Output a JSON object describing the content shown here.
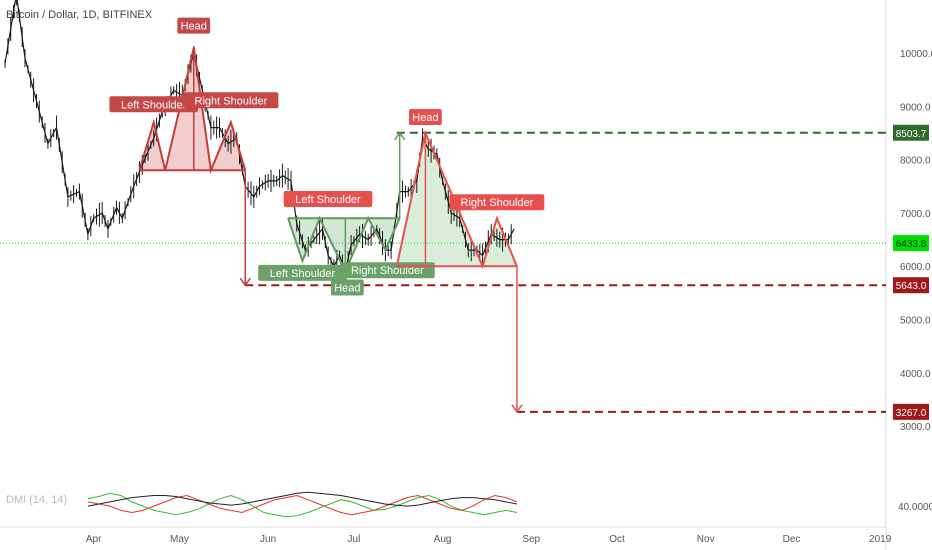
{
  "header": {
    "symbol_title": "Bitcoin / Dollar, 1D, BITFINEX"
  },
  "chart_data": {
    "type": "line",
    "title": "Bitcoin / Dollar, 1D, BITFINEX",
    "xlabel": "",
    "ylabel": "",
    "x_axis_labels": [
      "Apr",
      "May",
      "Jun",
      "Jul",
      "Aug",
      "Sep",
      "Oct",
      "Nov",
      "Dec",
      "2019"
    ],
    "y_ticks": [
      3000,
      4000,
      5000,
      6000,
      7000,
      8000,
      9000,
      10000
    ],
    "y_tick_labels": [
      "3000.0",
      "4000.0",
      "5000.0",
      "6000.0",
      "7000.0",
      "8000.0",
      "9000.0",
      "10000.0"
    ],
    "ylim": [
      2700,
      10700
    ],
    "grid": false,
    "price_series": {
      "name": "BTCUSD",
      "points": [
        [
          "Mar 01",
          9800
        ],
        [
          "Mar 05",
          11100
        ],
        [
          "Mar 08",
          9900
        ],
        [
          "Mar 12",
          9100
        ],
        [
          "Mar 16",
          8300
        ],
        [
          "Mar 19",
          8600
        ],
        [
          "Mar 23",
          7300
        ],
        [
          "Mar 27",
          7400
        ],
        [
          "Mar 30",
          6600
        ],
        [
          "Apr 01",
          6900
        ],
        [
          "Apr 04",
          7000
        ],
        [
          "Apr 06",
          6700
        ],
        [
          "Apr 09",
          7100
        ],
        [
          "Apr 11",
          6900
        ],
        [
          "Apr 15",
          7500
        ],
        [
          "Apr 18",
          7900
        ],
        [
          "Apr 22",
          8400
        ],
        [
          "Apr 25",
          8900
        ],
        [
          "Apr 29",
          9300
        ],
        [
          "May 02",
          9200
        ],
        [
          "May 05",
          9800
        ],
        [
          "May 06",
          10000
        ],
        [
          "May 09",
          9300
        ],
        [
          "May 12",
          8600
        ],
        [
          "May 15",
          8600
        ],
        [
          "May 18",
          8300
        ],
        [
          "May 21",
          8400
        ],
        [
          "May 24",
          7500
        ],
        [
          "May 27",
          7300
        ],
        [
          "May 29",
          7500
        ],
        [
          "Jun 01",
          7600
        ],
        [
          "Jun 04",
          7600
        ],
        [
          "Jun 06",
          7700
        ],
        [
          "Jun 09",
          7600
        ],
        [
          "Jun 11",
          6800
        ],
        [
          "Jun 14",
          6300
        ],
        [
          "Jun 17",
          6500
        ],
        [
          "Jun 20",
          6700
        ],
        [
          "Jun 22",
          6200
        ],
        [
          "Jun 24",
          6000
        ],
        [
          "Jun 26",
          6200
        ],
        [
          "Jun 28",
          5900
        ],
        [
          "Jun 30",
          6400
        ],
        [
          "Jul 03",
          6600
        ],
        [
          "Jul 06",
          6500
        ],
        [
          "Jul 09",
          6700
        ],
        [
          "Jul 12",
          6300
        ],
        [
          "Jul 14",
          6300
        ],
        [
          "Jul 17",
          7400
        ],
        [
          "Jul 20",
          7400
        ],
        [
          "Jul 23",
          7600
        ],
        [
          "Jul 25",
          8400
        ],
        [
          "Jul 27",
          8200
        ],
        [
          "Jul 30",
          8100
        ],
        [
          "Aug 01",
          7600
        ],
        [
          "Aug 04",
          7000
        ],
        [
          "Aug 07",
          6900
        ],
        [
          "Aug 10",
          6300
        ],
        [
          "Aug 13",
          6300
        ],
        [
          "Aug 15",
          6200
        ],
        [
          "Aug 18",
          6600
        ],
        [
          "Aug 21",
          6500
        ],
        [
          "Aug 24",
          6500
        ],
        [
          "Aug 26",
          6700
        ]
      ]
    },
    "price_levels": [
      {
        "label": "8503.7",
        "value": 8503.7,
        "style": "dashed",
        "color": "#2e6b2e"
      },
      {
        "label": "6433.8",
        "value": 6433.8,
        "style": "dotted",
        "color": "#00cc00"
      },
      {
        "label": "5643.0",
        "value": 5643.0,
        "style": "dashed",
        "color": "#a01818"
      },
      {
        "label": "3267.0",
        "value": 3267.0,
        "style": "dashed",
        "color": "#a01818"
      }
    ],
    "patterns": [
      {
        "kind": "head-and-shoulders",
        "color": "#c43c3c",
        "labels": {
          "left": "Left Shoulder",
          "head": "Head",
          "right": "Right Shoulder"
        },
        "points": [
          [
            "Apr 17",
            7800
          ],
          [
            "Apr 22",
            8700
          ],
          [
            "Apr 26",
            7800
          ],
          [
            "May 06",
            10100
          ],
          [
            "May 12",
            7800
          ],
          [
            "May 19",
            8700
          ],
          [
            "May 24",
            7800
          ]
        ],
        "neckline": [
          [
            "Apr 17",
            7800
          ],
          [
            "May 24",
            7800
          ]
        ],
        "target": [
          "May 24",
          5643
        ]
      },
      {
        "kind": "inverse-head-and-shoulders",
        "color": "#5e9b5e",
        "labels": {
          "left": "Left Shoulder",
          "head": "Head",
          "right": "Right Shoulder"
        },
        "points": [
          [
            "Jun 08",
            6900
          ],
          [
            "Jun 13",
            6100
          ],
          [
            "Jun 19",
            6900
          ],
          [
            "Jun 28",
            5900
          ],
          [
            "Jul 06",
            6900
          ],
          [
            "Jul 12",
            6300
          ],
          [
            "Jul 17",
            6900
          ]
        ],
        "neckline": [
          [
            "Jun 08",
            6900
          ],
          [
            "Jul 17",
            6900
          ]
        ],
        "target": [
          "Jul 17",
          8503.7
        ]
      },
      {
        "kind": "head-and-shoulders",
        "color": "#e85050",
        "labels": {
          "left": "",
          "head": "Head",
          "right": "Right Shoulder"
        },
        "points": [
          [
            "Jul 16",
            6000
          ],
          [
            "Jul 26",
            8500
          ],
          [
            "Aug 15",
            6000
          ],
          [
            "Aug 20",
            6900
          ],
          [
            "Aug 27",
            6000
          ]
        ],
        "neckline": [
          [
            "Jul 16",
            6000
          ],
          [
            "Aug 27",
            6000
          ]
        ],
        "target": [
          "Aug 27",
          3267
        ]
      }
    ],
    "indicator": {
      "name": "DMI",
      "label": "DMI (14, 14)",
      "y_tick_label": "40.0000",
      "series": [
        {
          "name": "DI+",
          "color": "#2dbd2d",
          "values": [
            25,
            27,
            30,
            28,
            22,
            18,
            14,
            12,
            10,
            12,
            15,
            20,
            25,
            28,
            24,
            18,
            12,
            10,
            8,
            9,
            12,
            16,
            20,
            24,
            22,
            18,
            14,
            15,
            18,
            22,
            26,
            28,
            24,
            18,
            14,
            12,
            10,
            12,
            14,
            12
          ]
        },
        {
          "name": "DI-",
          "color": "#e53030",
          "values": [
            22,
            20,
            18,
            14,
            12,
            14,
            18,
            22,
            26,
            28,
            24,
            20,
            16,
            14,
            12,
            16,
            20,
            24,
            26,
            28,
            24,
            20,
            16,
            12,
            10,
            12,
            14,
            18,
            22,
            26,
            28,
            24,
            20,
            16,
            14,
            18,
            24,
            28,
            26,
            22
          ]
        },
        {
          "name": "ADX",
          "color": "#222222",
          "values": [
            18,
            20,
            22,
            24,
            26,
            27,
            28,
            28,
            27,
            25,
            23,
            21,
            20,
            19,
            20,
            22,
            24,
            26,
            28,
            30,
            31,
            30,
            29,
            28,
            26,
            24,
            22,
            20,
            19,
            18,
            19,
            21,
            23,
            25,
            26,
            26,
            25,
            24,
            22,
            20
          ]
        }
      ]
    }
  }
}
